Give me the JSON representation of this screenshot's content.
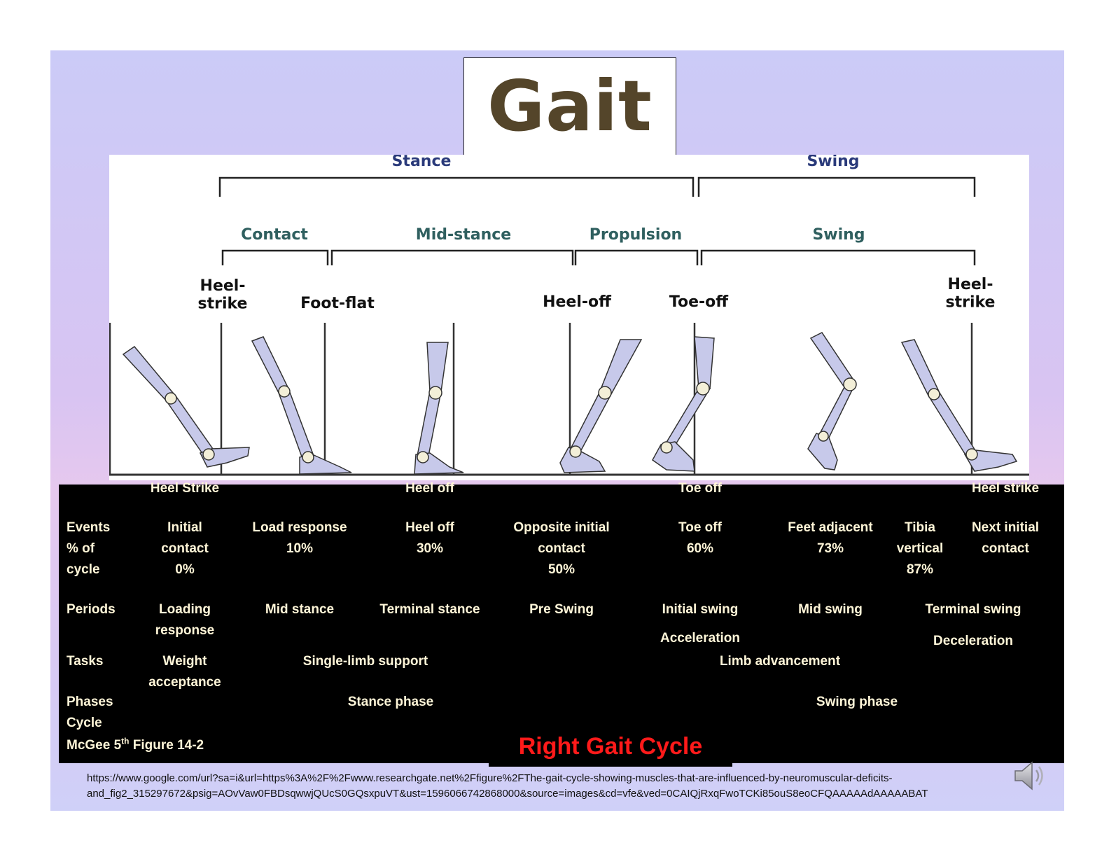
{
  "title": "Gait",
  "figure": {
    "top_labels": [
      "Stance",
      "Swing"
    ],
    "phase_labels": [
      "Contact",
      "Mid-stance",
      "Propulsion",
      "Swing"
    ],
    "events": [
      "Heel-\nstrike",
      "Foot-flat",
      "Heel-off",
      "Toe-off",
      "Heel-\nstrike"
    ],
    "colors": {
      "top": "#2a3a7a",
      "phase": "#2f5f5f",
      "event": "#111111",
      "leg": "#c7c9ea",
      "outline": "#333333"
    }
  },
  "table": {
    "header_events": [
      "Heel Strike",
      "Heel off",
      "Toe off",
      "Heel strike"
    ],
    "row_labels": {
      "events": "Events\n% of\ncycle",
      "periods": "Periods",
      "tasks": "Tasks",
      "phases": "Phases\nCycle",
      "source": "McGee 5th Figure 14-2"
    },
    "events": [
      "Initial\ncontact\n0%",
      "Load response\n10%",
      "Heel off\n30%",
      "Opposite initial\ncontact\n50%",
      "Toe off\n60%",
      "Feet adjacent\n73%",
      "Tibia\nvertical\n87%",
      "Next initial\ncontact"
    ],
    "periods": [
      "Loading\nresponse",
      "Mid stance",
      "Terminal stance",
      "Pre Swing",
      "Initial swing",
      "Mid swing",
      "Terminal swing"
    ],
    "period_notes": [
      "Acceleration",
      "Deceleration"
    ],
    "tasks": [
      "Weight\nacceptance",
      "Single-limb support",
      "Limb advancement"
    ],
    "phases": [
      "Stance phase",
      "Swing phase"
    ]
  },
  "caption": "Right Gait Cycle",
  "source_url": "https://www.google.com/url?sa=i&url=https%3A%2F%2Fwww.researchgate.net%2Ffigure%2FThe-gait-cycle-showing-muscles-that-are-influenced-by-neuromuscular-deficits-and_fig2_315297672&psig=AOvVaw0FBDsqwwjQUcS0GQsxpuVT&ust=1596066742868000&source=images&cd=vfe&ved=0CAIQjRxqFwoTCKi85ouS8eoCFQAAAAAdAAAAABAT",
  "speaker_icon": "speaker-icon"
}
